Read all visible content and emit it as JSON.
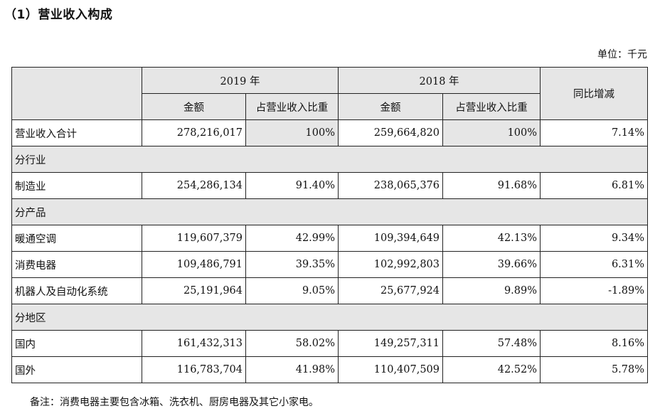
{
  "title": "（1）营业收入构成",
  "unit": "单位：千元",
  "header": {
    "y2019": "2019 年",
    "y2018": "2018 年",
    "yoy": "同比增减",
    "amount": "金额",
    "share": "占营业收入比重"
  },
  "rows": {
    "total": {
      "label": "营业收入合计",
      "a2019": "278,216,017",
      "s2019": "100%",
      "a2018": "259,664,820",
      "s2018": "100%",
      "yoy": "7.14%"
    },
    "sec_industry": "分行业",
    "manufacturing": {
      "label": "制造业",
      "a2019": "254,286,134",
      "s2019": "91.40%",
      "a2018": "238,065,376",
      "s2018": "91.68%",
      "yoy": "6.81%"
    },
    "sec_product": "分产品",
    "hvac": {
      "label": "暖通空调",
      "a2019": "119,607,379",
      "s2019": "42.99%",
      "a2018": "109,394,649",
      "s2018": "42.13%",
      "yoy": "9.34%"
    },
    "consumer": {
      "label": "消费电器",
      "a2019": "109,486,791",
      "s2019": "39.35%",
      "a2018": "102,992,803",
      "s2018": "39.66%",
      "yoy": "6.31%"
    },
    "robotics": {
      "label": "机器人及自动化系统",
      "a2019": "25,191,964",
      "s2019": "9.05%",
      "a2018": "25,677,924",
      "s2018": "9.89%",
      "yoy": "-1.89%"
    },
    "sec_region": "分地区",
    "domestic": {
      "label": "国内",
      "a2019": "161,432,313",
      "s2019": "58.02%",
      "a2018": "149,257,311",
      "s2018": "57.48%",
      "yoy": "8.16%"
    },
    "overseas": {
      "label": "国外",
      "a2019": "116,783,704",
      "s2019": "41.98%",
      "a2018": "110,407,509",
      "s2018": "42.52%",
      "yoy": "5.78%"
    }
  },
  "note": "备注：消费电器主要包含冰箱、洗衣机、厨房电器及其它小家电。"
}
